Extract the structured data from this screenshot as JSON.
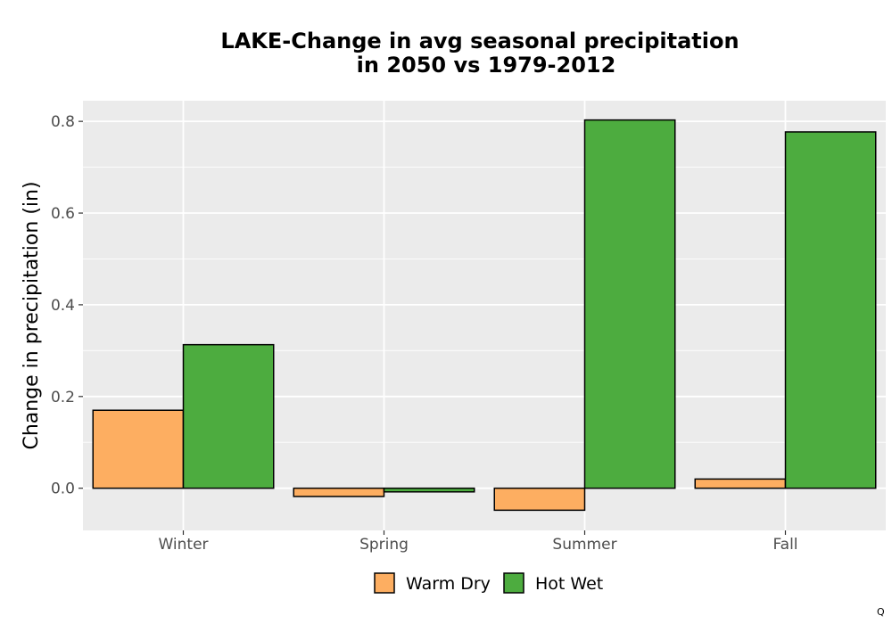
{
  "chart_data": {
    "type": "bar",
    "title_lines": [
      "LAKE-Change in avg seasonal precipitation",
      "in 2050 vs 1979-2012"
    ],
    "xlabel": "",
    "ylabel": "Change in precipitation (in)",
    "categories": [
      "Winter",
      "Spring",
      "Summer",
      "Fall"
    ],
    "series": [
      {
        "name": "Warm Dry",
        "color": "#FDAE61",
        "values": [
          0.17,
          -0.018,
          -0.048,
          0.02
        ]
      },
      {
        "name": "Hot Wet",
        "color": "#4DAC3F",
        "values": [
          0.313,
          -0.008,
          0.803,
          0.777
        ]
      }
    ],
    "ylim": [
      -0.092,
      0.845
    ],
    "yticks": [
      0.0,
      0.2,
      0.4,
      0.6,
      0.8
    ],
    "ytick_labels": [
      "0.0",
      "0.2",
      "0.4",
      "0.6",
      "0.8"
    ],
    "grid": true,
    "legend_position": "bottom",
    "panel_background": "#EBEBEB",
    "corner_mark": "Q"
  }
}
